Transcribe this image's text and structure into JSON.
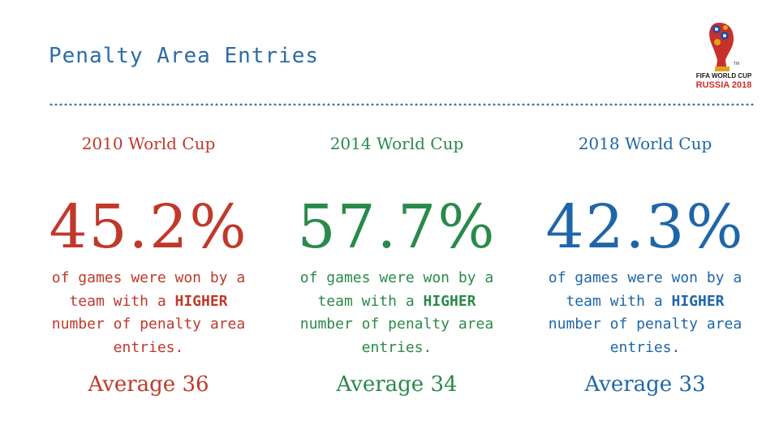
{
  "slide": {
    "title": "Penalty Area Entries",
    "logo": {
      "line1": "FIFA WORLD CUP",
      "line2": "RUSSIA 2018",
      "icon": "fifa-world-cup-2018-emblem"
    },
    "colors": {
      "title": "#2b6ca6",
      "divider": "#2b6ca6",
      "red": "#c0392b",
      "green": "#2a8a4a",
      "blue": "#1f66a8"
    },
    "columns": [
      {
        "heading": "2010 World Cup",
        "stat": "45.2%",
        "desc_pre": "of games were won by a team with a ",
        "desc_bold": "HIGHER",
        "desc_post": " number of penalty area entries.",
        "average": "Average 36"
      },
      {
        "heading": "2014 World Cup",
        "stat": "57.7%",
        "desc_pre": "of games were won by a team with a ",
        "desc_bold": "HIGHER",
        "desc_post": " number of penalty area entries.",
        "average": "Average 34"
      },
      {
        "heading": "2018 World Cup",
        "stat": "42.3%",
        "desc_pre": "of games were won by a team with a ",
        "desc_bold": "HIGHER",
        "desc_post": " number of penalty area entries.",
        "average": "Average 33"
      }
    ]
  }
}
